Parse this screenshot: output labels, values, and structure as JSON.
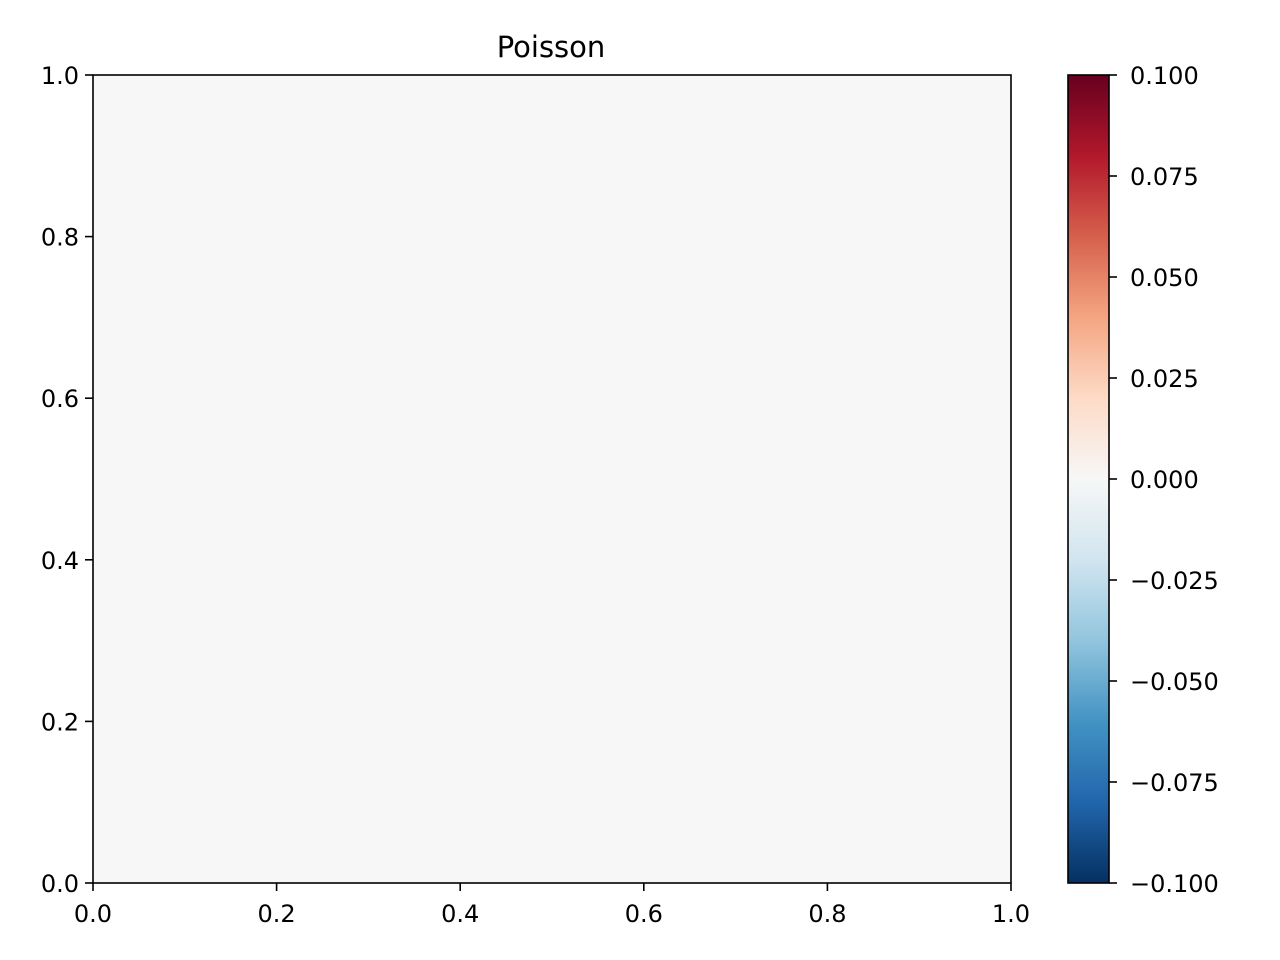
{
  "chart_data": {
    "type": "heatmap",
    "title": "Poisson",
    "xlabel": "",
    "ylabel": "",
    "xlim": [
      0.0,
      1.0
    ],
    "ylim": [
      0.0,
      1.0
    ],
    "x_ticks": [
      "0.0",
      "0.2",
      "0.4",
      "0.6",
      "0.8",
      "1.0"
    ],
    "y_ticks": [
      "0.0",
      "0.2",
      "0.4",
      "0.6",
      "0.8",
      "1.0"
    ],
    "field_value": 0.0,
    "field_color": "#f7f7f7",
    "grid": false,
    "colorbar": {
      "colormap": "RdBu_r",
      "range": [
        -0.1,
        0.1
      ],
      "ticks": [
        {
          "value": 0.1,
          "label": "0.100"
        },
        {
          "value": 0.075,
          "label": "0.075"
        },
        {
          "value": 0.05,
          "label": "0.050"
        },
        {
          "value": 0.025,
          "label": "0.025"
        },
        {
          "value": 0.0,
          "label": "0.000"
        },
        {
          "value": -0.025,
          "label": "−0.025"
        },
        {
          "value": -0.05,
          "label": "−0.050"
        },
        {
          "value": -0.075,
          "label": "−0.075"
        },
        {
          "value": -0.1,
          "label": "−0.100"
        }
      ],
      "stops": [
        "#053061",
        "#2166ac",
        "#4393c3",
        "#92c5de",
        "#d1e5f0",
        "#f7f7f7",
        "#fddbc7",
        "#f4a582",
        "#d6604d",
        "#b2182b",
        "#67001f"
      ]
    }
  }
}
